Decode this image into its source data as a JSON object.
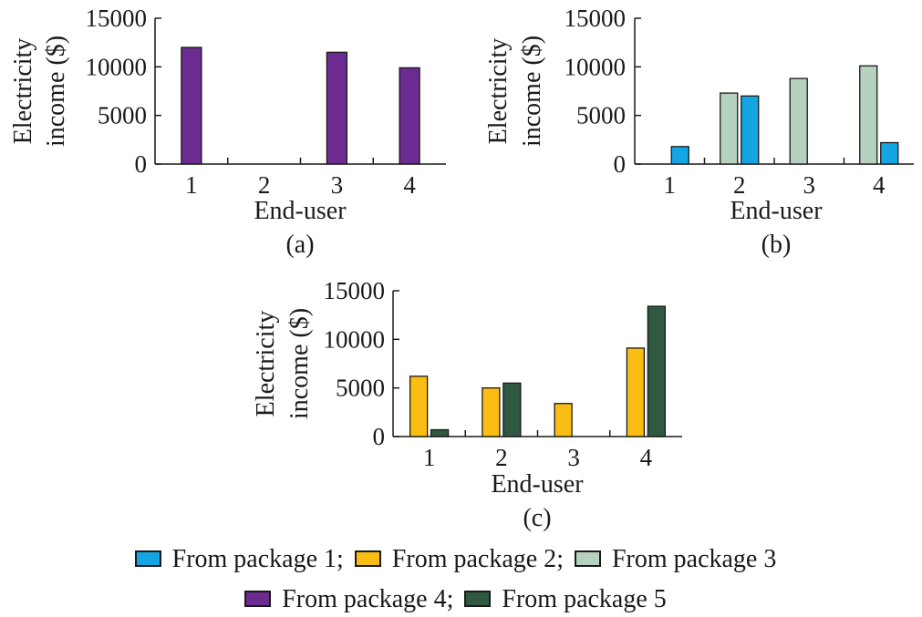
{
  "colors": {
    "p1": "#14a5e3",
    "p2": "#f9bd13",
    "p3": "#b6d1be",
    "p4": "#6b2b90",
    "p5": "#305942"
  },
  "legend": {
    "row1": [
      {
        "label": "From package 1",
        "sep": ";",
        "color_key": "p1"
      },
      {
        "label": "From package 2",
        "sep": ";",
        "color_key": "p2"
      },
      {
        "label": "From package 3",
        "sep": "",
        "color_key": "p3"
      }
    ],
    "row2": [
      {
        "label": "From package 4",
        "sep": ";",
        "color_key": "p4"
      },
      {
        "label": "From package 5",
        "sep": "",
        "color_key": "p5"
      }
    ]
  },
  "chart_data": [
    {
      "type": "bar",
      "caption": "(a)",
      "xlabel": "End-user",
      "ylabel_lines": [
        "Electricity",
        "income ($)"
      ],
      "categories": [
        "1",
        "2",
        "3",
        "4"
      ],
      "ylim": [
        0,
        15000
      ],
      "yticks": [
        "0",
        "5000",
        "10000",
        "15000"
      ],
      "series": [
        {
          "name": "From package 4",
          "color_key": "p4",
          "values": [
            12000,
            0,
            11500,
            9900
          ]
        }
      ]
    },
    {
      "type": "bar",
      "caption": "(b)",
      "xlabel": "End-user",
      "ylabel_lines": [
        "Electricity",
        "income ($)"
      ],
      "categories": [
        "1",
        "2",
        "3",
        "4"
      ],
      "ylim": [
        0,
        15000
      ],
      "yticks": [
        "0",
        "5000",
        "10000",
        "15000"
      ],
      "series": [
        {
          "name": "From package 3",
          "color_key": "p3",
          "values": [
            0,
            7300,
            8800,
            10100
          ]
        },
        {
          "name": "From package 1",
          "color_key": "p1",
          "values": [
            1800,
            7000,
            0,
            2200
          ]
        }
      ]
    },
    {
      "type": "bar",
      "caption": "(c)",
      "xlabel": "End-user",
      "ylabel_lines": [
        "Electricity",
        "income ($)"
      ],
      "categories": [
        "1",
        "2",
        "3",
        "4"
      ],
      "ylim": [
        0,
        15000
      ],
      "yticks": [
        "0",
        "5000",
        "10000",
        "15000"
      ],
      "series": [
        {
          "name": "From package 2",
          "color_key": "p2",
          "values": [
            6200,
            5000,
            3400,
            9100
          ]
        },
        {
          "name": "From package 5",
          "color_key": "p5",
          "values": [
            700,
            5500,
            0,
            13400
          ]
        }
      ]
    }
  ]
}
